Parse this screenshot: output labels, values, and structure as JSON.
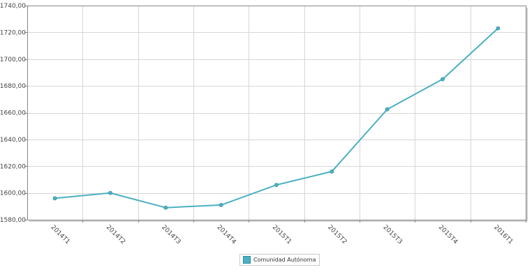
{
  "chart_data": {
    "type": "line",
    "categories": [
      "2014T1",
      "2014T2",
      "2014T3",
      "2014T4",
      "2015T1",
      "2015T2",
      "2015T3",
      "2015T4",
      "2016T1"
    ],
    "series": [
      {
        "name": "Comunidad Autónoma",
        "values": [
          1596,
          1600,
          1589,
          1591,
          1606,
          1616,
          1662.5,
          1685,
          1723
        ],
        "color": "#4bb0c2"
      }
    ],
    "ylim": [
      1580,
      1740
    ],
    "yticks": [
      1580,
      1600,
      1620,
      1640,
      1660,
      1680,
      1700,
      1720,
      1740
    ],
    "ytick_labels": [
      "1580,00",
      "1600,00",
      "1620,00",
      "1640,00",
      "1660,00",
      "1680,00",
      "1700,00",
      "1720,00",
      "1740,00"
    ],
    "grid": true,
    "legend": "bottom-center"
  }
}
